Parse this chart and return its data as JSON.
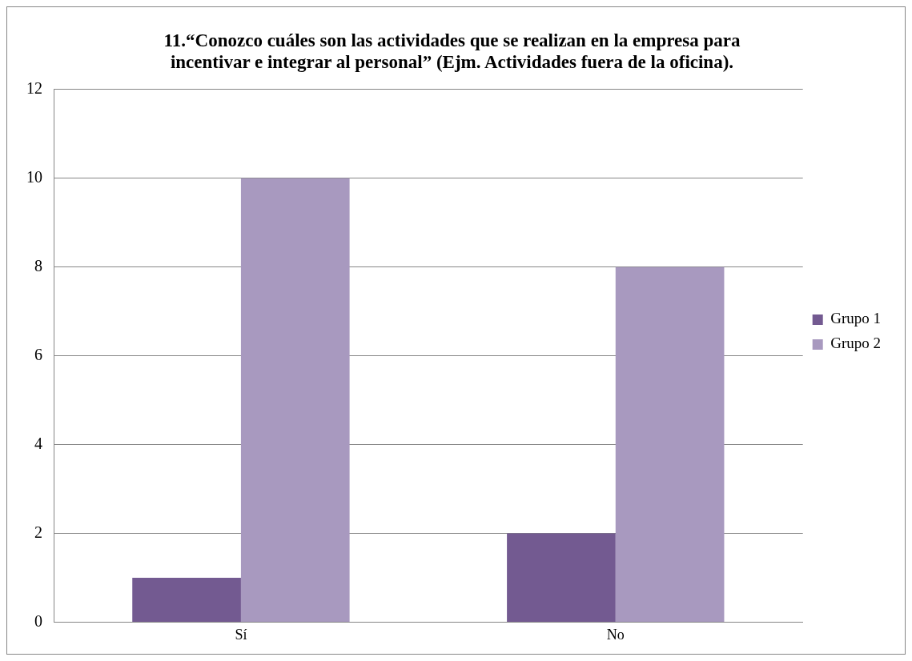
{
  "chart_data": {
    "type": "bar",
    "title": "11.“Conozco cuáles son las actividades que se realizan en la empresa para incentivar e integrar al personal” (Ejm. Actividades fuera de la oficina).",
    "categories": [
      "Sí",
      "No"
    ],
    "series": [
      {
        "name": "Grupo 1",
        "color": "#735a91",
        "values": [
          1,
          2
        ]
      },
      {
        "name": "Grupo 2",
        "color": "#a899bf",
        "values": [
          10,
          8
        ]
      }
    ],
    "ylim": [
      0,
      12
    ],
    "yticks": [
      0,
      2,
      4,
      6,
      8,
      10,
      12
    ],
    "grid": "y",
    "legend": "right"
  }
}
